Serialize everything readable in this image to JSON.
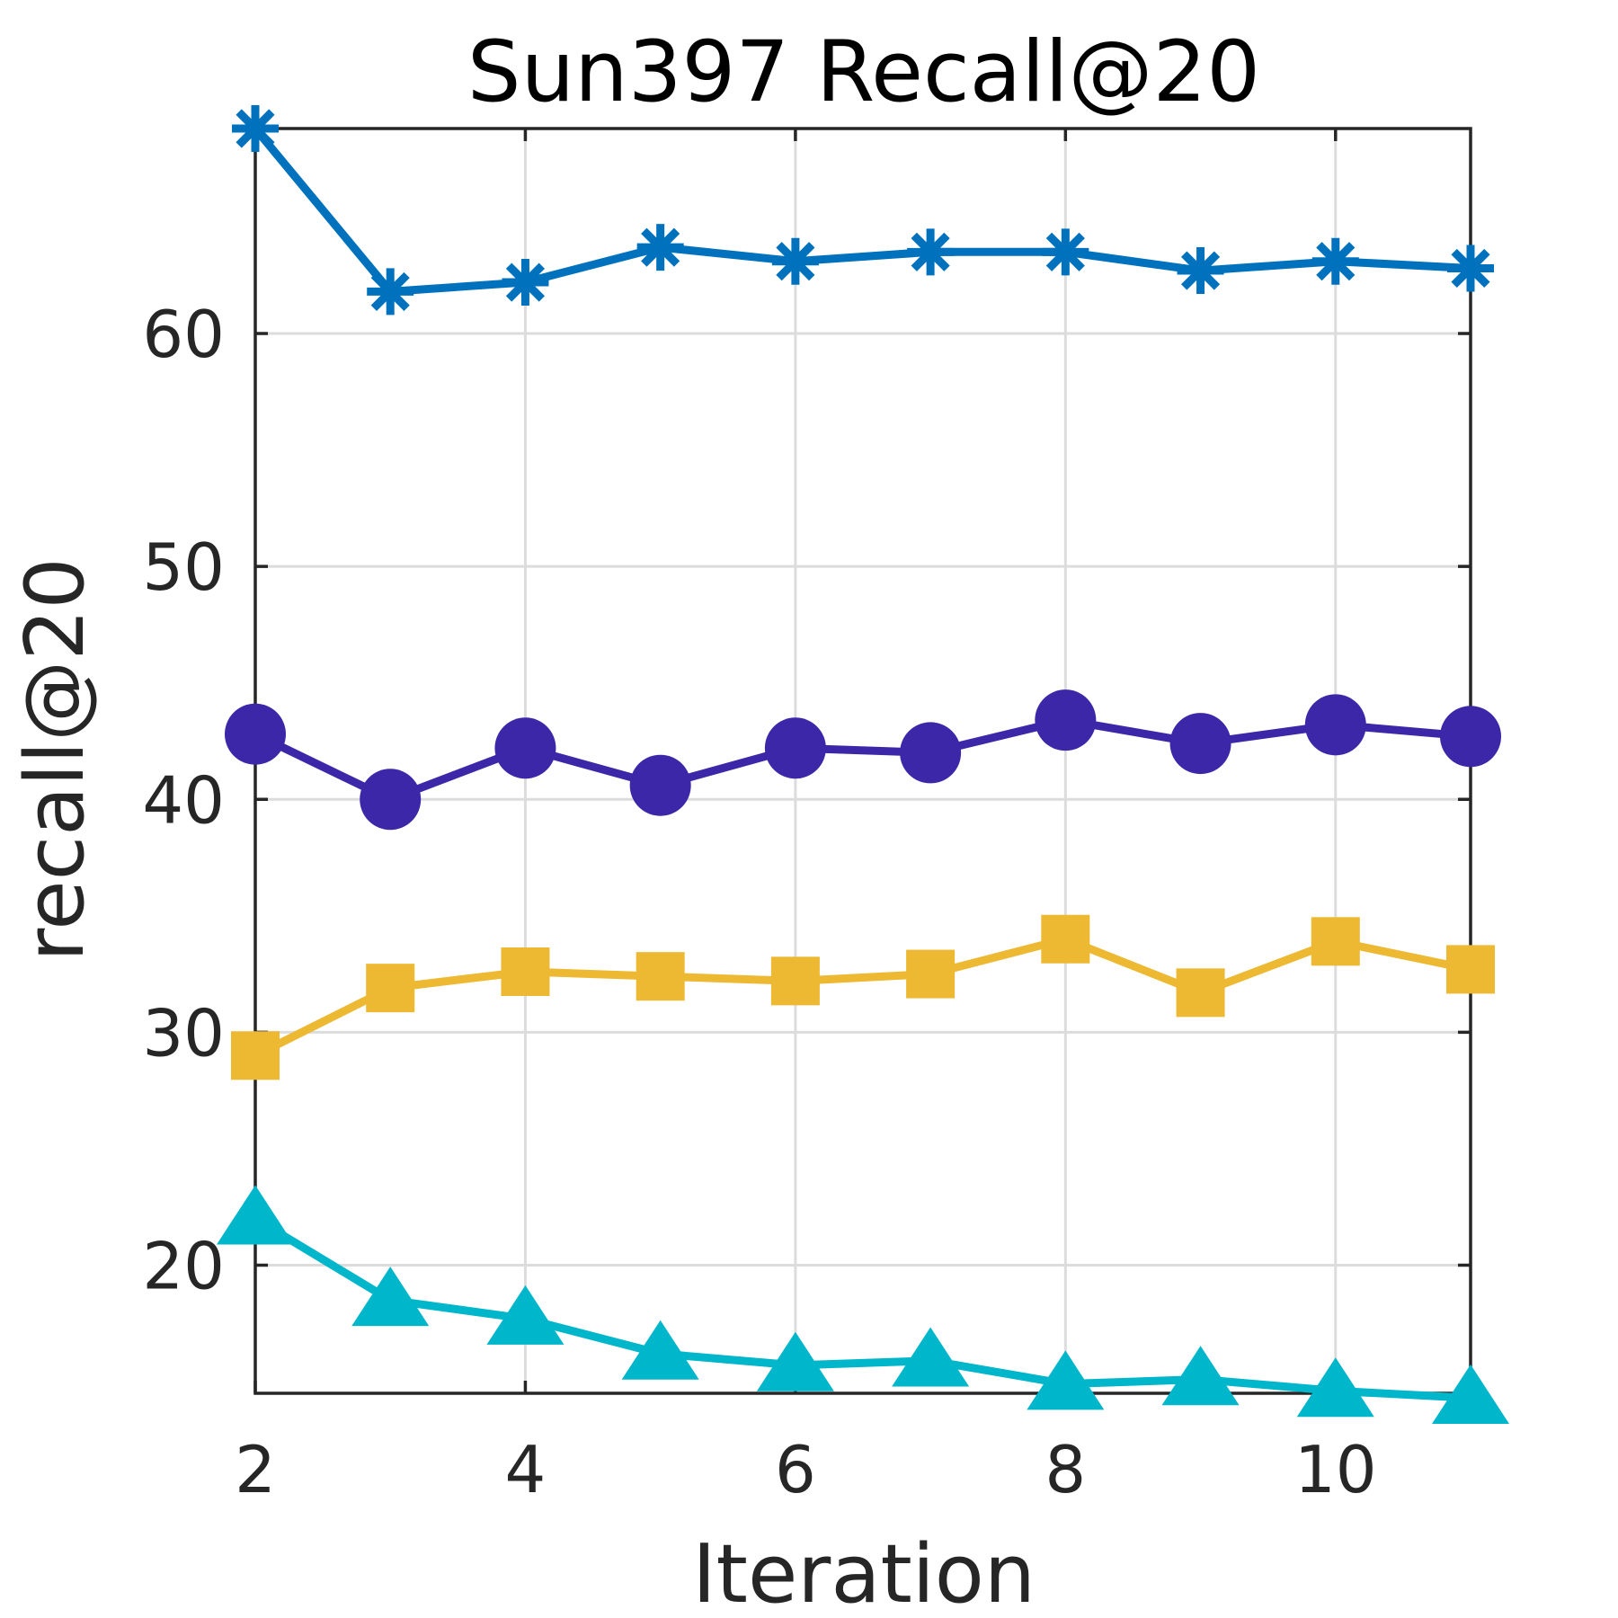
{
  "chart_data": {
    "type": "line",
    "title": "Sun397 Recall@20",
    "xlabel": "Iteration",
    "ylabel": "recall@20",
    "xlim": [
      2,
      11
    ],
    "ylim": [
      14.5,
      68.8
    ],
    "xticks": [
      2,
      4,
      6,
      8,
      10
    ],
    "yticks": [
      20,
      30,
      40,
      50,
      60
    ],
    "grid": true,
    "x": [
      2,
      3,
      4,
      5,
      6,
      7,
      8,
      9,
      10,
      11
    ],
    "series": [
      {
        "color": "#0072bd",
        "marker": "asterisk",
        "values": [
          68.8,
          61.8,
          62.2,
          63.7,
          63.1,
          63.5,
          63.5,
          62.7,
          63.1,
          62.8
        ]
      },
      {
        "color": "#3c27a8",
        "marker": "circle",
        "values": [
          42.8,
          40.0,
          42.2,
          40.6,
          42.2,
          42.0,
          43.4,
          42.4,
          43.2,
          42.7
        ]
      },
      {
        "color": "#edb932",
        "marker": "square",
        "values": [
          29.0,
          31.9,
          32.6,
          32.4,
          32.2,
          32.5,
          34.0,
          31.7,
          33.9,
          32.7
        ]
      },
      {
        "color": "#00b6ca",
        "marker": "triangle",
        "values": [
          22.0,
          18.5,
          17.7,
          16.2,
          15.7,
          15.9,
          14.9,
          15.1,
          14.6,
          14.3
        ]
      }
    ]
  }
}
